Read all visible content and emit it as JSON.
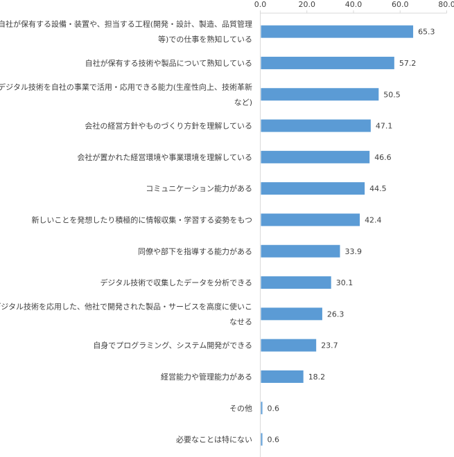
{
  "chart_data": {
    "type": "bar",
    "orientation": "horizontal",
    "title": "",
    "xlabel": "",
    "ylabel": "",
    "xlim": [
      0,
      80
    ],
    "x_ticks": [
      "0.0",
      "20.0",
      "40.0",
      "60.0",
      "80.0"
    ],
    "x_tick_values": [
      0,
      20,
      40,
      60,
      80
    ],
    "axis_position": "top",
    "grid": false,
    "bar_color": "#5B9BD5",
    "axis_color": "#D9D9D9",
    "categories": [
      [
        "自社が保有する設備・装置や、担当する工程(開発・設計、製造、品質管理",
        "等)での仕事を熟知している"
      ],
      [
        "自社が保有する技術や製品について熟知している"
      ],
      [
        "デジタル技術を自社の事業で活用・応用できる能力(生産性向上、技術革新",
        "など)"
      ],
      [
        "会社の経営方針やものづくり方針を理解している"
      ],
      [
        "会社が置かれた経営環境や事業環境を理解している"
      ],
      [
        "コミュニケーション能力がある"
      ],
      [
        "新しいことを発想したり積極的に情報収集・学習する姿勢をもつ"
      ],
      [
        "同僚や部下を指導する能力がある"
      ],
      [
        "デジタル技術で収集したデータを分析できる"
      ],
      [
        "デジタル技術を応用した、他社で開発された製品・サービスを高度に使いこ",
        "なせる"
      ],
      [
        "自身でプログラミング、システム開発ができる"
      ],
      [
        "経営能力や管理能力がある"
      ],
      [
        "その他"
      ],
      [
        "必要なことは特にない"
      ]
    ],
    "values": [
      65.3,
      57.2,
      50.5,
      47.1,
      46.6,
      44.5,
      42.4,
      33.9,
      30.1,
      26.3,
      23.7,
      18.2,
      0.6,
      0.6
    ],
    "value_labels": [
      "65.3",
      "57.2",
      "50.5",
      "47.1",
      "46.6",
      "44.5",
      "42.4",
      "33.9",
      "30.1",
      "26.3",
      "23.7",
      "18.2",
      "0.6",
      "0.6"
    ]
  }
}
